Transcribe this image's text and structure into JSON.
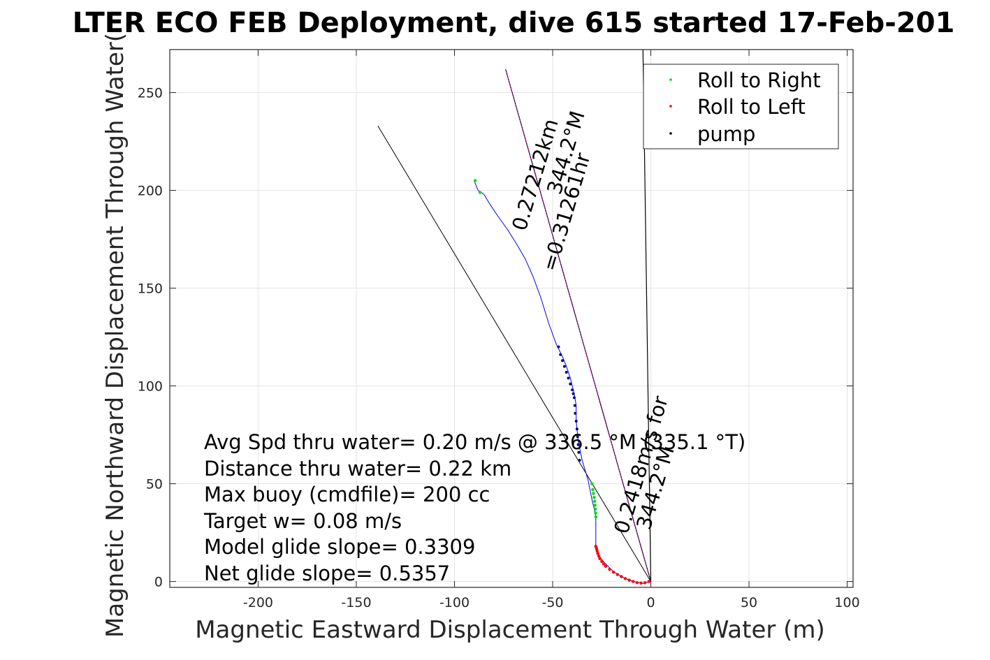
{
  "chart_data": {
    "type": "scatter",
    "title": "LTER ECO FEB Deployment, dive 615 started 17-Feb-201",
    "xlabel": "Magnetic Eastward Displacement Through Water (m)",
    "ylabel": "Magnetic Northward Displacement Through Water(",
    "xlim": [
      -245,
      103
    ],
    "ylim": [
      -3,
      272
    ],
    "xticks": [
      -200,
      -150,
      -100,
      -50,
      0,
      50,
      100
    ],
    "yticks": [
      0,
      50,
      100,
      150,
      200,
      250
    ],
    "grid": true,
    "legend_position": "top-right",
    "legend": [
      {
        "label": "Roll to Right",
        "color": "#00dd00"
      },
      {
        "label": "Roll to Left",
        "color": "#ff0000"
      },
      {
        "label": "pump",
        "color": "#000000"
      }
    ],
    "annotations": {
      "long_dist": "0.27212km",
      "long_head": "344.2°M",
      "long_seg": "=0.31261hr",
      "short_speed": "0.2418m/s for",
      "short_head": "344.2°M"
    },
    "series": [
      {
        "name": "glider track",
        "color": "#0000ff",
        "x": [
          0,
          -4,
          -9,
          -14,
          -19,
          -24,
          -27,
          -28,
          -28,
          -28,
          -29,
          -30,
          -32,
          -35,
          -37,
          -38,
          -38,
          -39,
          -40,
          -41,
          -43,
          -45,
          -48,
          -52,
          -56,
          -60,
          -64,
          -68,
          -73,
          -78,
          -82,
          -85,
          -88,
          -90
        ],
        "y": [
          0,
          -1,
          0,
          2,
          5,
          10,
          14,
          18,
          25,
          33,
          38,
          42,
          52,
          62,
          72,
          82,
          90,
          96,
          100,
          104,
          110,
          115,
          121,
          132,
          145,
          156,
          165,
          172,
          180,
          187,
          193,
          198,
          200,
          205
        ]
      },
      {
        "name": "Roll to Right",
        "color": "#00dd00",
        "x": [
          -30,
          -29.6,
          -29.2,
          -28.9,
          -28.6,
          -28.4,
          -28.2,
          -28.1,
          -28,
          -87,
          -89.5
        ],
        "y": [
          50,
          47,
          45,
          43,
          41,
          39,
          37,
          35,
          33,
          199,
          205
        ]
      },
      {
        "name": "Roll to Left",
        "color": "#ff0000",
        "x": [
          -1,
          -3,
          -5,
          -7,
          -9,
          -11,
          -13,
          -15,
          -17,
          -19,
          -21,
          -23,
          -24,
          -25,
          -26,
          -26.5,
          -27,
          -27.3,
          -27.6,
          -27.8,
          -28
        ],
        "y": [
          0,
          -0.6,
          -0.8,
          -0.6,
          0,
          0.7,
          1.5,
          2.5,
          3.6,
          4.8,
          6.2,
          7.8,
          9,
          10.3,
          11.7,
          13,
          14.3,
          15.5,
          16.6,
          17.5,
          18
        ]
      },
      {
        "name": "pump",
        "color": "#000080",
        "x": [
          -47,
          -46,
          -45,
          -44,
          -43,
          -42,
          -41,
          -40,
          -39.5,
          -39,
          -38.7,
          -38.5,
          -38,
          -37.6,
          -37.3,
          -37,
          -36.7,
          -36.3
        ],
        "y": [
          120,
          116,
          113,
          110,
          107,
          104,
          101,
          98,
          96,
          94,
          90,
          86,
          82,
          78,
          74,
          70,
          66,
          62
        ]
      },
      {
        "name": "heading line",
        "color": "#000000",
        "x": [
          0,
          -74
        ],
        "y": [
          0,
          262
        ]
      },
      {
        "name": "heading line 2",
        "color": "#000000",
        "x": [
          0,
          -139
        ],
        "y": [
          0,
          233
        ]
      },
      {
        "name": "vertical reference",
        "color": "#000000",
        "x": [
          0,
          -4
        ],
        "y": [
          0,
          272
        ]
      },
      {
        "name": "magenta track",
        "color": "#cc00cc",
        "x": [
          -74,
          -70,
          -65,
          -60,
          -55,
          -50,
          -45,
          -40,
          -35,
          -30,
          -25,
          -20,
          -15,
          -10,
          -5,
          0
        ],
        "y": [
          262,
          248,
          230,
          212,
          195,
          177,
          159,
          142,
          124,
          106,
          89,
          71,
          53,
          35,
          18,
          0
        ]
      }
    ],
    "stats": [
      "Avg Spd thru water=  0.20 m/s @ 336.5 °M (335.1 °T)",
      "Distance thru water=  0.22 km",
      "Max buoy (cmdfile)= 200 cc",
      "Target w= 0.08 m/s",
      "Model glide slope= 0.3309",
      "Net glide slope= 0.5357"
    ]
  }
}
